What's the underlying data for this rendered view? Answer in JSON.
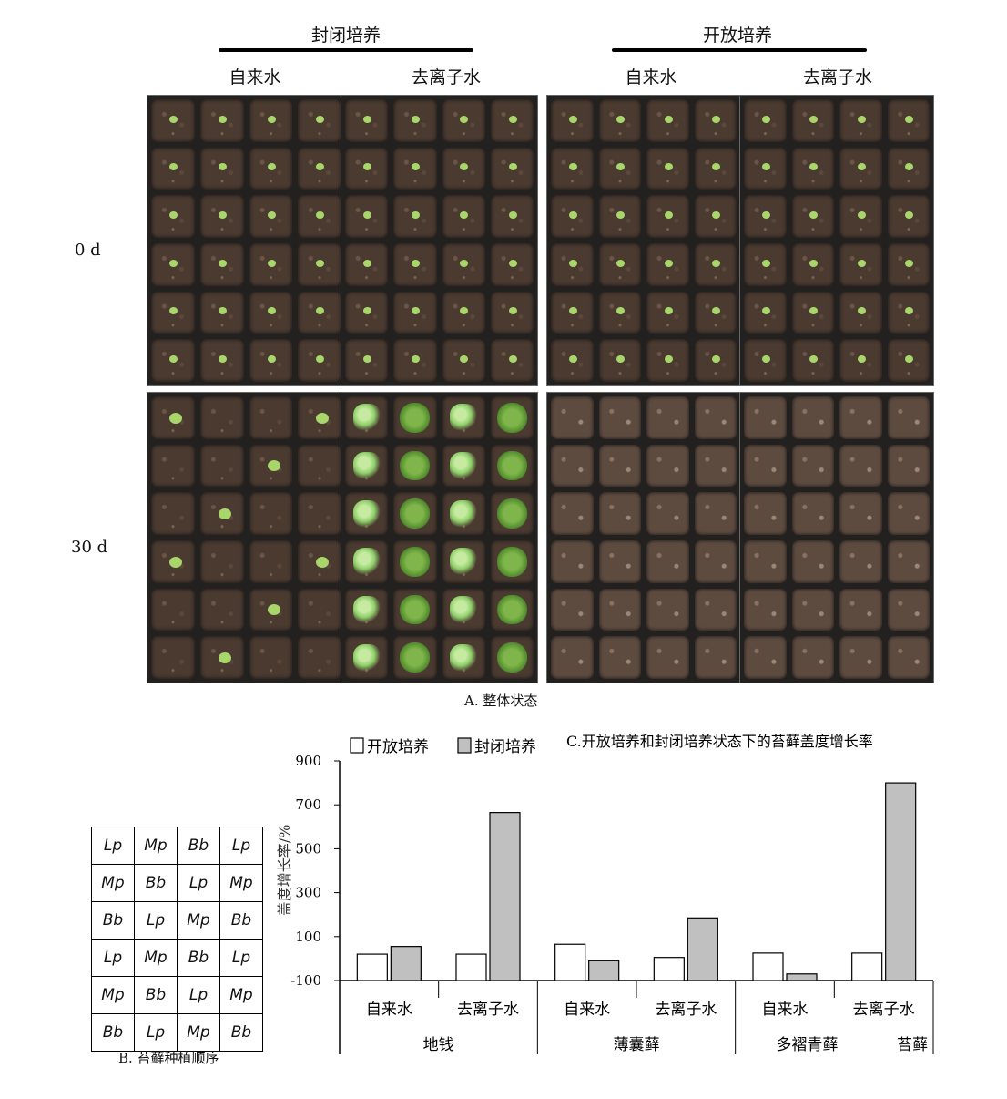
{
  "panel_a": {
    "groups": [
      "封闭培养",
      "开放培养"
    ],
    "water": [
      "自来水",
      "去离子水",
      "自来水",
      "去离子水"
    ],
    "days": [
      "0 d",
      "30 d"
    ],
    "caption": "A. 整体状态"
  },
  "panel_b": {
    "rows": [
      [
        "Lp",
        "Mp",
        "Bb",
        "Lp"
      ],
      [
        "Mp",
        "Bb",
        "Lp",
        "Mp"
      ],
      [
        "Bb",
        "Lp",
        "Mp",
        "Bb"
      ],
      [
        "Lp",
        "Mp",
        "Bb",
        "Lp"
      ],
      [
        "Mp",
        "Bb",
        "Lp",
        "Mp"
      ],
      [
        "Bb",
        "Lp",
        "Mp",
        "Bb"
      ]
    ],
    "caption": "B. 苔藓种植顺序"
  },
  "chart_data": {
    "type": "bar",
    "title": "C.开放培养和封闭培养状态下的苔藓盖度增长率",
    "ylabel": "盖度增长率/%",
    "ylim": [
      -100,
      900
    ],
    "yticks": [
      "900",
      "700",
      "500",
      "300",
      "100",
      "-100"
    ],
    "categories": [
      "自来水",
      "去离子水",
      "自来水",
      "去离子水",
      "自来水",
      "去离子水"
    ],
    "groups": [
      "地钱",
      "薄囊藓",
      "多褶青藓"
    ],
    "group_suffix": "苔藓",
    "series": [
      {
        "name": "开放培养",
        "values": [
          20,
          20,
          65,
          5,
          25,
          25
        ],
        "color": "#ffffff"
      },
      {
        "name": "封闭培养",
        "values": [
          55,
          665,
          -10,
          185,
          -70,
          800
        ],
        "color": "#c0c0c0"
      }
    ]
  }
}
